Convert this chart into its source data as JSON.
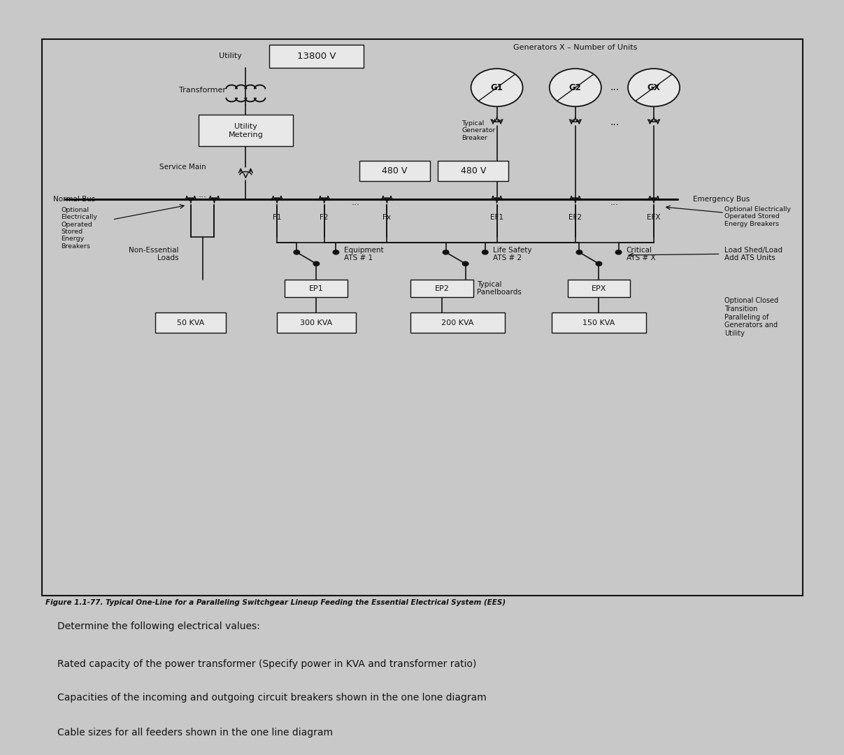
{
  "bg_color": "#c8c8c8",
  "diagram_bg": "#cccccc",
  "line_color": "#111111",
  "box_color": "#e8e8e8",
  "text_color": "#111111",
  "voltage_13800": "13800 V",
  "voltage_480": "480 V",
  "label_utility": "Utility",
  "label_transformer": "Transformer",
  "label_utility_metering": "Utility\nMetering",
  "label_service_main": "Service Main",
  "label_normal_bus": "Normal Bus",
  "label_optional_breakers": "Optional\nElectrically\nOperated\nStored\nEnergy\nBreakers",
  "label_f1": "F1",
  "label_f2": "F2",
  "label_fx": "Fx",
  "label_generators": "Generators X – Number of Units",
  "label_g1": "G1",
  "label_g2": "G2",
  "label_gx": "GX",
  "label_typical_gen_breaker": "Typical\nGenerator\nBreaker",
  "label_emergency_bus": "Emergency Bus",
  "label_optional_emerg": "Optional Electrically\nOperated Stored\nEnergy Breakers",
  "label_ef1": "EF1",
  "label_ef2": "EF2",
  "label_efx": "EFX",
  "label_non_essential": "Non-Essential\nLoads",
  "label_50kva": "50 KVA",
  "label_equipment_ats": "Equipment\nATS # 1",
  "label_ep1": "EP1",
  "label_300kva": "300 KVA",
  "label_life_safety_ats": "Life Safety\nATS # 2",
  "label_ep2": "EP2",
  "label_typical_panelboards": "Typical\nPanelboards",
  "label_200kva": "200 KVA",
  "label_critical_ats": "Critical\nATS # X",
  "label_load_shed": "Load Shed/Load\nAdd ATS Units",
  "label_epx": "EPX",
  "label_150kva": "150 KVA",
  "label_optional_closed": "Optional Closed\nTransition\nParalleling of\nGenerators and\nUtility",
  "caption": "Figure 1.1-77. Typical One-Line for a Paralleling Switchgear Lineup Feeding the Essential Electrical System (EES)",
  "below_texts": [
    "Determine the following electrical values:",
    "Rated capacity of the power transformer (Specify power in KVA and transformer ratio)",
    "Capacities of the incoming and outgoing circuit breakers shown in the one lone diagram",
    "Cable sizes for all feeders shown in the one line diagram"
  ]
}
